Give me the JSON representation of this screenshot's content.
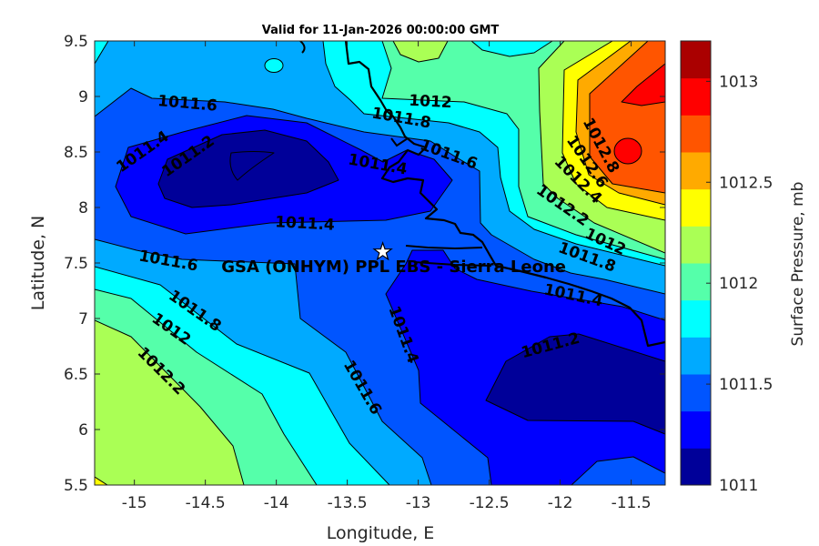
{
  "chart_data": {
    "type": "contour",
    "title": "Valid for 11-Jan-2026 00:00:00 GMT",
    "xlabel": "Longitude, E",
    "ylabel": "Latitude, N",
    "xlim": [
      -15.28,
      -11.26
    ],
    "ylim": [
      5.5,
      9.5
    ],
    "xticks": [
      -15,
      -14.5,
      -14,
      -13.5,
      -13,
      -12.5,
      -12,
      -11.5
    ],
    "yticks": [
      5.5,
      6,
      6.5,
      7,
      7.5,
      8,
      8.5,
      9,
      9.5
    ],
    "contour_levels": [
      1011,
      1011.2,
      1011.4,
      1011.6,
      1011.8,
      1012,
      1012.2,
      1012.4,
      1012.6,
      1012.8,
      1013
    ],
    "contour_labels": [
      "1011.6",
      "1011.4",
      "1011.2",
      "1011.4",
      "1011.4",
      "1012",
      "1011.8",
      "1011.6",
      "1012.8",
      "1012.6",
      "1012.4",
      "1012.2",
      "1012",
      "1011.8",
      "1011.6",
      "1011.4",
      "1011.2",
      "1011.4",
      "1011.6",
      "1011.8",
      "1012",
      "1012.2"
    ],
    "station": {
      "label": "GSA (ONHYM) PPL EBS  - Sierra Leone",
      "lon": -13.25,
      "lat": 7.6,
      "marker": "star-icon"
    },
    "colorbar": {
      "label": "Surface Pressure, mb",
      "range": [
        1011,
        1013.2
      ],
      "ticks": [
        1011,
        1011.5,
        1012,
        1012.5,
        1013
      ],
      "tick_labels": [
        "1011",
        "1011.5",
        "1012",
        "1012.5",
        "1013"
      ],
      "colors": [
        "#000099",
        "#0000ff",
        "#0055ff",
        "#00aaff",
        "#00ffff",
        "#55ffaa",
        "#aaff55",
        "#ffff00",
        "#ffaa00",
        "#ff5500",
        "#ff0000",
        "#aa0000"
      ]
    }
  }
}
